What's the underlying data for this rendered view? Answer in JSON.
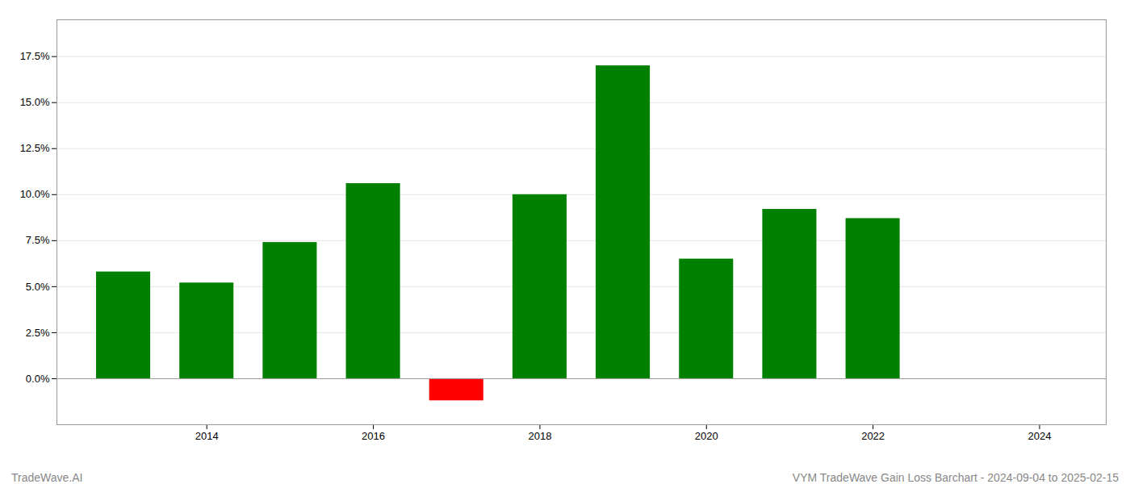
{
  "chart_data": {
    "type": "bar",
    "title": "VYM TradeWave Gain Loss Barchart - 2024-09-04 to 2025-02-15",
    "annotations": [
      "TradeWave.AI"
    ],
    "x": [
      2013,
      2014,
      2015,
      2016,
      2017,
      2018,
      2019,
      2020,
      2021,
      2022,
      2023
    ],
    "values": [
      0.058,
      0.052,
      0.074,
      0.106,
      -0.012,
      0.1,
      0.17,
      0.065,
      0.092,
      0.087,
      0.0
    ],
    "colors": [
      "#008000",
      "#008000",
      "#008000",
      "#008000",
      "#ff0000",
      "#008000",
      "#008000",
      "#008000",
      "#008000",
      "#008000",
      "#008000"
    ],
    "xlim": [
      2012.2,
      2024.8
    ],
    "xticks": [
      2014,
      2016,
      2018,
      2020,
      2022,
      2024
    ],
    "ylim": [
      -0.025,
      0.195
    ],
    "yticks": [
      {
        "value": 0.0,
        "label": "0.0%"
      },
      {
        "value": 0.025,
        "label": "2.5%"
      },
      {
        "value": 0.05,
        "label": "5.0%"
      },
      {
        "value": 0.075,
        "label": "7.5%"
      },
      {
        "value": 0.1,
        "label": "10.0%"
      },
      {
        "value": 0.125,
        "label": "12.5%"
      },
      {
        "value": 0.15,
        "label": "15.0%"
      },
      {
        "value": 0.175,
        "label": "17.5%"
      }
    ],
    "grid": true
  }
}
